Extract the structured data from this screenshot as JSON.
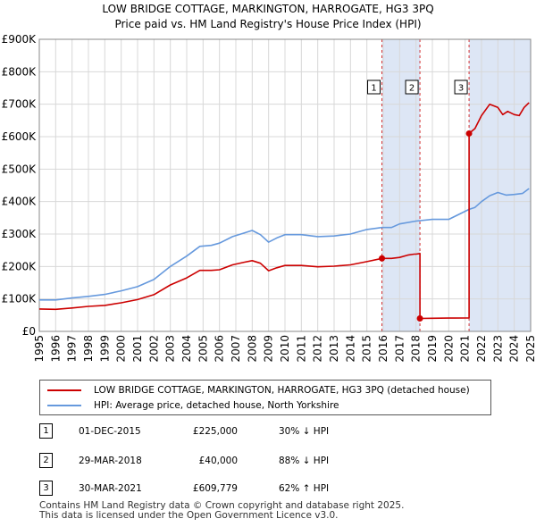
{
  "title_line1": "LOW BRIDGE COTTAGE, MARKINGTON, HARROGATE, HG3 3PQ",
  "title_line2": "Price paid vs. HM Land Registry's House Price Index (HPI)",
  "chart_data": {
    "type": "line",
    "xlim": [
      1995,
      2025
    ],
    "ylim": [
      0,
      900000
    ],
    "y_ticks": [
      {
        "value": 0,
        "label": "£0"
      },
      {
        "value": 100000,
        "label": "£100K"
      },
      {
        "value": 200000,
        "label": "£200K"
      },
      {
        "value": 300000,
        "label": "£300K"
      },
      {
        "value": 400000,
        "label": "£400K"
      },
      {
        "value": 500000,
        "label": "£500K"
      },
      {
        "value": 600000,
        "label": "£600K"
      },
      {
        "value": 700000,
        "label": "£700K"
      },
      {
        "value": 800000,
        "label": "£800K"
      },
      {
        "value": 900000,
        "label": "£900K"
      }
    ],
    "x_ticks": [
      "1995",
      "1996",
      "1997",
      "1998",
      "1999",
      "2000",
      "2001",
      "2002",
      "2003",
      "2004",
      "2005",
      "2006",
      "2007",
      "2008",
      "2009",
      "2010",
      "2011",
      "2012",
      "2013",
      "2014",
      "2015",
      "2016",
      "2017",
      "2018",
      "2019",
      "2020",
      "2021",
      "2022",
      "2023",
      "2024",
      "2025"
    ],
    "grid": true,
    "series": [
      {
        "name": "LOW BRIDGE COTTAGE, MARKINGTON, HARROGATE, HG3 3PQ (detached house)",
        "color": "#cc0000",
        "points": [
          [
            1995.0,
            69000
          ],
          [
            1996.0,
            68000
          ],
          [
            1997.0,
            72000
          ],
          [
            1998.0,
            77000
          ],
          [
            1999.0,
            80000
          ],
          [
            2000.0,
            88000
          ],
          [
            2001.0,
            98000
          ],
          [
            2002.0,
            113000
          ],
          [
            2003.0,
            143000
          ],
          [
            2004.0,
            165000
          ],
          [
            2004.8,
            188000
          ],
          [
            2005.5,
            188000
          ],
          [
            2006.0,
            190000
          ],
          [
            2006.8,
            205000
          ],
          [
            2007.5,
            213000
          ],
          [
            2008.0,
            218000
          ],
          [
            2008.5,
            210000
          ],
          [
            2009.0,
            187000
          ],
          [
            2009.5,
            196000
          ],
          [
            2010.0,
            203000
          ],
          [
            2011.0,
            203000
          ],
          [
            2012.0,
            199000
          ],
          [
            2013.0,
            201000
          ],
          [
            2014.0,
            205000
          ],
          [
            2015.0,
            215000
          ],
          [
            2015.92,
            225000
          ],
          [
            2016.5,
            225000
          ],
          [
            2017.0,
            228000
          ],
          [
            2017.5,
            235000
          ],
          [
            2017.9,
            238000
          ],
          [
            2018.0,
            238000
          ],
          [
            2018.24,
            240000
          ],
          [
            2018.24,
            40000
          ],
          [
            2019.0,
            40500
          ],
          [
            2020.0,
            41000
          ],
          [
            2021.24,
            41500
          ],
          [
            2021.24,
            609779
          ],
          [
            2021.6,
            625000
          ],
          [
            2022.0,
            665000
          ],
          [
            2022.5,
            700000
          ],
          [
            2023.0,
            690000
          ],
          [
            2023.3,
            668000
          ],
          [
            2023.6,
            678000
          ],
          [
            2024.0,
            668000
          ],
          [
            2024.3,
            665000
          ],
          [
            2024.6,
            690000
          ],
          [
            2024.9,
            705000
          ]
        ]
      },
      {
        "name": "HPI: Average price, detached house, North Yorkshire",
        "color": "#6699dd",
        "points": [
          [
            1995.0,
            97000
          ],
          [
            1996.0,
            97000
          ],
          [
            1997.0,
            103000
          ],
          [
            1998.0,
            108000
          ],
          [
            1999.0,
            114000
          ],
          [
            2000.0,
            125000
          ],
          [
            2001.0,
            138000
          ],
          [
            2002.0,
            160000
          ],
          [
            2003.0,
            200000
          ],
          [
            2004.0,
            232000
          ],
          [
            2004.8,
            262000
          ],
          [
            2005.5,
            265000
          ],
          [
            2006.0,
            272000
          ],
          [
            2006.8,
            292000
          ],
          [
            2007.5,
            303000
          ],
          [
            2008.0,
            311000
          ],
          [
            2008.5,
            298000
          ],
          [
            2009.0,
            275000
          ],
          [
            2009.5,
            288000
          ],
          [
            2010.0,
            298000
          ],
          [
            2011.0,
            298000
          ],
          [
            2012.0,
            292000
          ],
          [
            2013.0,
            294000
          ],
          [
            2014.0,
            300000
          ],
          [
            2015.0,
            314000
          ],
          [
            2015.92,
            320000
          ],
          [
            2016.5,
            320000
          ],
          [
            2017.0,
            331000
          ],
          [
            2018.0,
            340000
          ],
          [
            2019.0,
            345000
          ],
          [
            2020.0,
            345000
          ],
          [
            2021.24,
            376000
          ],
          [
            2021.6,
            382000
          ],
          [
            2022.0,
            400000
          ],
          [
            2022.5,
            418000
          ],
          [
            2023.0,
            428000
          ],
          [
            2023.5,
            420000
          ],
          [
            2024.0,
            422000
          ],
          [
            2024.5,
            425000
          ],
          [
            2024.9,
            440000
          ]
        ]
      }
    ],
    "transactions": [
      {
        "id": "1",
        "date": "01-DEC-2015",
        "x": 2015.92,
        "price": 225000,
        "price_label": "£225,000",
        "hpi_label": "30% ↓ HPI"
      },
      {
        "id": "2",
        "date": "29-MAR-2018",
        "x": 2018.24,
        "price": 40000,
        "price_label": "£40,000",
        "hpi_label": "88% ↓ HPI"
      },
      {
        "id": "3",
        "date": "30-MAR-2021",
        "x": 2021.24,
        "price": 609779,
        "price_label": "£609,779",
        "hpi_label": "62% ↑ HPI"
      }
    ],
    "shade_color": "#dde6f5",
    "marker_color": "#cc0000"
  },
  "footer_line1": "Contains HM Land Registry data © Crown copyright and database right 2025.",
  "footer_line2": "This data is licensed under the Open Government Licence v3.0."
}
